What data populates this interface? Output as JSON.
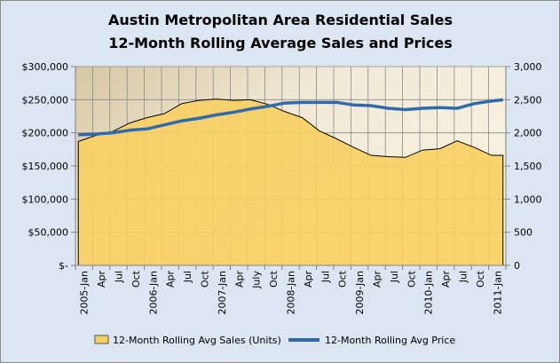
{
  "chart_data": {
    "type": "area+line",
    "title": "Austin Metropolitan Area Residential Sales",
    "subtitle": "12-Month Rolling Average Sales and Prices",
    "x_tick_labels": [
      "2005-Jan",
      "Apr",
      "Jul",
      "Oct",
      "2006-Jan",
      "Apr",
      "Jul",
      "Oct",
      "2007-Jan",
      "Apr",
      "July",
      "Oct",
      "2008-Jan",
      "Apr",
      "Jul",
      "Oct",
      "2009-Jan",
      "Apr",
      "Jul",
      "Oct",
      "2010-Jan",
      "Apr",
      "Jul",
      "Oct",
      "2011-Jan"
    ],
    "y_left": {
      "ticks": [
        "$-",
        "$50,000",
        "$100,000",
        "$150,000",
        "$200,000",
        "$250,000",
        "$300,000"
      ],
      "range": [
        0,
        300000
      ]
    },
    "y_right": {
      "ticks": [
        "0",
        "500",
        "1,000",
        "1,500",
        "2,000",
        "2,500",
        "3,000"
      ],
      "range": [
        0,
        3000
      ]
    },
    "grid": true,
    "legend_position": "bottom",
    "series": [
      {
        "name": "12-Month Rolling Avg Sales (Units)",
        "type": "area",
        "axis": "right",
        "color": "#f8cf62",
        "points": [
          [
            "2005-01",
            1870
          ],
          [
            "2005-04",
            1960
          ],
          [
            "2005-07",
            2020
          ],
          [
            "2005-10",
            2150
          ],
          [
            "2006-01",
            2230
          ],
          [
            "2006-04",
            2290
          ],
          [
            "2006-07",
            2440
          ],
          [
            "2006-10",
            2490
          ],
          [
            "2007-01",
            2510
          ],
          [
            "2007-04",
            2490
          ],
          [
            "2007-07",
            2500
          ],
          [
            "2007-10",
            2430
          ],
          [
            "2008-01",
            2320
          ],
          [
            "2008-04",
            2230
          ],
          [
            "2008-07",
            2030
          ],
          [
            "2008-10",
            1910
          ],
          [
            "2009-01",
            1780
          ],
          [
            "2009-04",
            1660
          ],
          [
            "2009-07",
            1640
          ],
          [
            "2009-10",
            1630
          ],
          [
            "2010-01",
            1740
          ],
          [
            "2010-04",
            1760
          ],
          [
            "2010-07",
            1880
          ],
          [
            "2010-10",
            1780
          ],
          [
            "2011-01",
            1660
          ],
          [
            "2011-03",
            1660
          ]
        ]
      },
      {
        "name": "12-Month Rolling Avg Price",
        "type": "line",
        "axis": "left",
        "color": "#2e6aad",
        "points": [
          [
            "2005-01",
            197000
          ],
          [
            "2005-04",
            198000
          ],
          [
            "2005-07",
            200000
          ],
          [
            "2005-10",
            204000
          ],
          [
            "2006-01",
            206000
          ],
          [
            "2006-04",
            212000
          ],
          [
            "2006-07",
            218000
          ],
          [
            "2006-10",
            222000
          ],
          [
            "2007-01",
            227000
          ],
          [
            "2007-04",
            231000
          ],
          [
            "2007-07",
            236000
          ],
          [
            "2007-10",
            240000
          ],
          [
            "2008-01",
            245000
          ],
          [
            "2008-04",
            246000
          ],
          [
            "2008-07",
            246000
          ],
          [
            "2008-10",
            246000
          ],
          [
            "2009-01",
            242000
          ],
          [
            "2009-04",
            241000
          ],
          [
            "2009-07",
            237000
          ],
          [
            "2009-10",
            235000
          ],
          [
            "2010-01",
            237000
          ],
          [
            "2010-04",
            238000
          ],
          [
            "2010-07",
            237000
          ],
          [
            "2010-10",
            244000
          ],
          [
            "2011-01",
            248000
          ],
          [
            "2011-03",
            250000
          ]
        ]
      }
    ]
  }
}
